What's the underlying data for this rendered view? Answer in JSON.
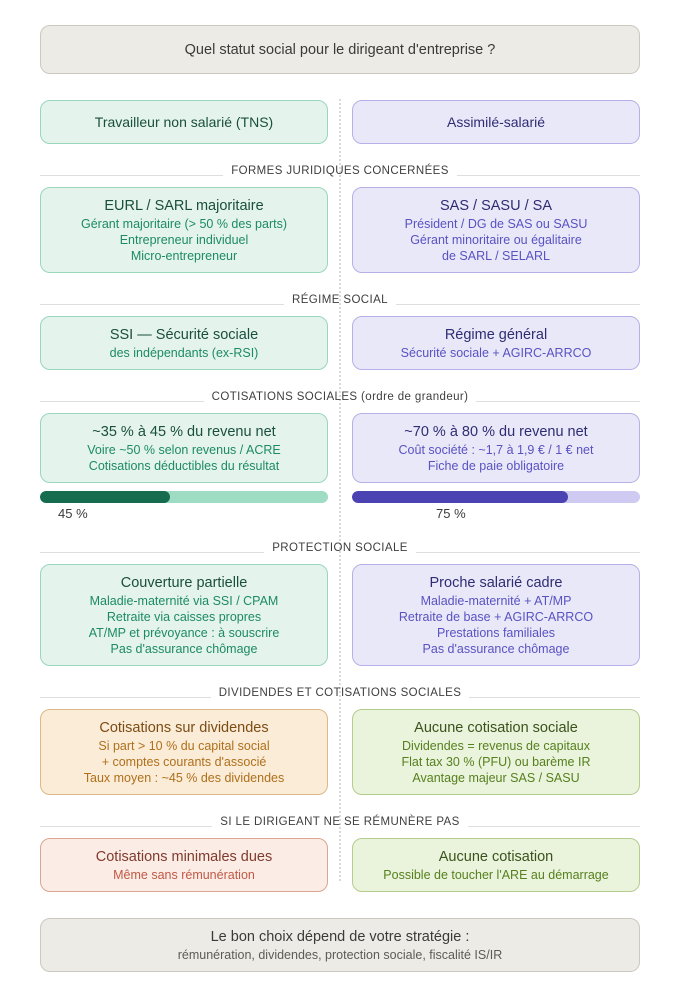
{
  "header": {
    "title": "Quel statut social pour le dirigeant d'entreprise ?"
  },
  "columns": {
    "left": "Travailleur non salarié (TNS)",
    "right": "Assimilé-salarié"
  },
  "sections": [
    {
      "label": "FORMES JURIDIQUES CONCERNÉES",
      "left": {
        "title": "EURL / SARL majoritaire",
        "lines": [
          "Gérant majoritaire (> 50 % des parts)",
          "Entrepreneur individuel",
          "Micro-entrepreneur"
        ]
      },
      "right": {
        "title": "SAS / SASU / SA",
        "lines": [
          "Président / DG de SAS ou SASU",
          "Gérant minoritaire ou égalitaire",
          "de SARL / SELARL"
        ]
      }
    },
    {
      "label": "RÉGIME SOCIAL",
      "left": {
        "title": "SSI — Sécurité sociale",
        "lines": [
          "des indépendants (ex-RSI)"
        ]
      },
      "right": {
        "title": "Régime général",
        "lines": [
          "Sécurité sociale + AGIRC-ARRCO"
        ]
      }
    },
    {
      "label": "COTISATIONS SOCIALES (ordre de grandeur)",
      "left": {
        "title": "~35 % à 45 % du revenu net",
        "lines": [
          "Voire ~50 % selon revenus / ACRE",
          "Cotisations déductibles du résultat"
        ]
      },
      "right": {
        "title": "~70 % à 80 % du revenu net",
        "lines": [
          "Coût société : ~1,7 à 1,9 € / 1 € net",
          "Fiche de paie obligatoire"
        ]
      }
    },
    {
      "label": "PROTECTION SOCIALE",
      "left": {
        "title": "Couverture partielle",
        "lines": [
          "Maladie-maternité via SSI / CPAM",
          "Retraite via caisses propres",
          "AT/MP et prévoyance : à souscrire",
          "Pas d'assurance chômage"
        ]
      },
      "right": {
        "title": "Proche salarié cadre",
        "lines": [
          "Maladie-maternité + AT/MP",
          "Retraite de base + AGIRC-ARRCO",
          "Prestations familiales",
          "Pas d'assurance chômage"
        ]
      }
    },
    {
      "label": "DIVIDENDES ET COTISATIONS SOCIALES",
      "left": {
        "title": "Cotisations sur dividendes",
        "lines": [
          "Si part > 10 % du capital social",
          "+ comptes courants d'associé",
          "Taux moyen : ~45 % des dividendes"
        ]
      },
      "right": {
        "title": "Aucune cotisation sociale",
        "lines": [
          "Dividendes = revenus de capitaux",
          "Flat tax 30 % (PFU) ou barème IR",
          "Avantage majeur SAS / SASU"
        ]
      }
    },
    {
      "label": "SI LE DIRIGEANT NE SE RÉMUNÈRE PAS",
      "left": {
        "title": "Cotisations minimales dues",
        "lines": [
          "Même sans rémunération"
        ]
      },
      "right": {
        "title": "Aucune cotisation",
        "lines": [
          "Possible de toucher l'ARE au démarrage"
        ]
      }
    }
  ],
  "bars": {
    "left": {
      "percent": 45,
      "label": "45 %"
    },
    "right": {
      "percent": 75,
      "label": "75 %"
    }
  },
  "footer": {
    "title": "Le bon choix dépend de votre stratégie :",
    "subtitle": "rémunération, dividendes, protection sociale, fiscalité IS/IR"
  },
  "colors": {
    "teal_accent": "#156c4e",
    "purple_accent": "#4c43b3",
    "orange_accent": "#b06f1c",
    "olive_accent": "#56801e",
    "red_accent": "#c05945",
    "neutral_bg": "#edebe6"
  }
}
